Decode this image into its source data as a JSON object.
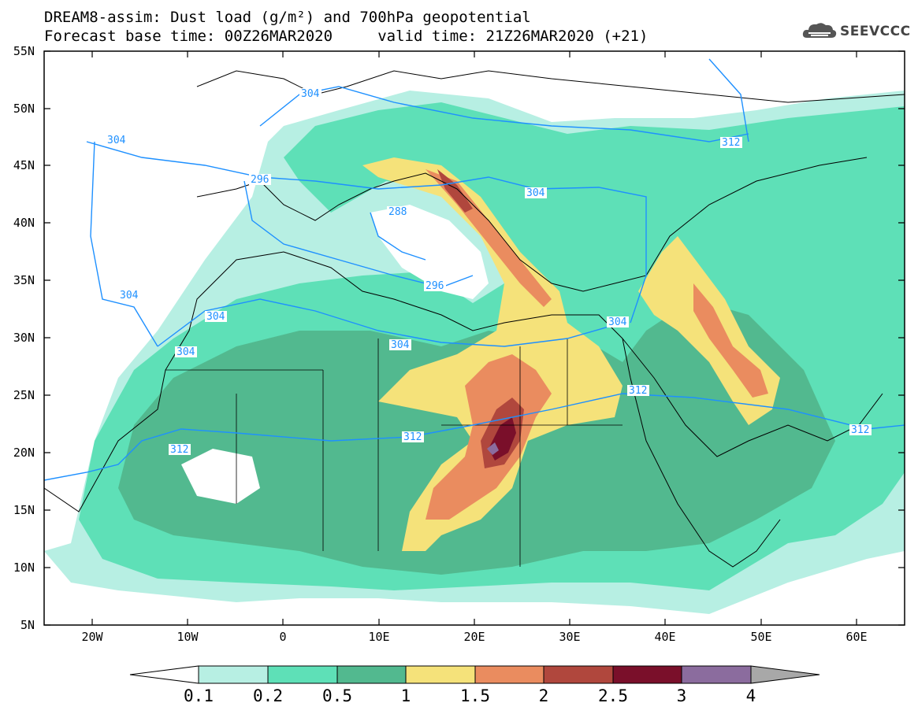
{
  "header": {
    "line1": "DREAM8-assim: Dust load (g/m²) and 700hPa geopotential",
    "line2": "Forecast base time: 00Z26MAR2020     valid time: 21Z26MAR2020 (+21)",
    "logo_text": "SEEVCCC"
  },
  "map": {
    "lat_labels": [
      "55N",
      "50N",
      "45N",
      "40N",
      "35N",
      "30N",
      "25N",
      "20N",
      "15N",
      "10N",
      "5N"
    ],
    "lon_labels": [
      "20W",
      "10W",
      "0",
      "10E",
      "20E",
      "30E",
      "40E",
      "50E",
      "60E"
    ],
    "contour_labels": [
      "304",
      "304",
      "296",
      "288",
      "296",
      "304",
      "304",
      "304",
      "304",
      "304",
      "304",
      "312",
      "312",
      "312",
      "312",
      "312",
      "304"
    ],
    "ocean_color": "#ffffff",
    "coast_color": "#000000",
    "contour_color": "#1e90ff"
  },
  "colorbar": {
    "labels": [
      "0.1",
      "0.2",
      "0.5",
      "1",
      "1.5",
      "2",
      "2.5",
      "3",
      "4"
    ],
    "colors": [
      "#ffffff",
      "#b7efe3",
      "#5ee0b7",
      "#52b98f",
      "#f5e27a",
      "#ea8c5f",
      "#b0473d",
      "#7a0f2a",
      "#8b6c9e",
      "#a8a8a8"
    ]
  }
}
